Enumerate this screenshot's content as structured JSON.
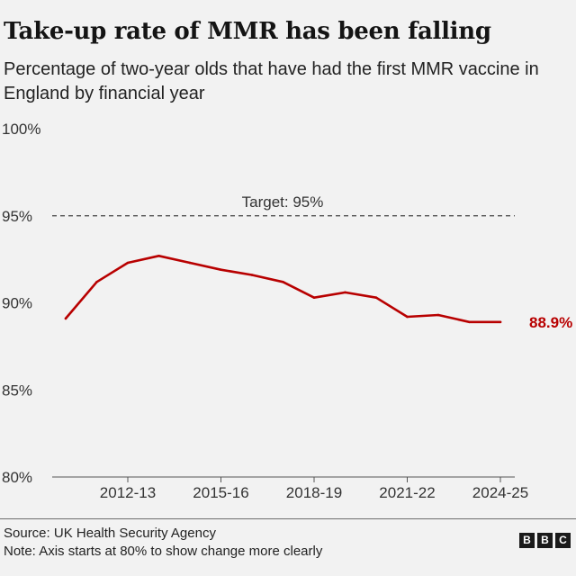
{
  "title": "Take-up rate of MMR has been falling",
  "subtitle": "Percentage of two-year olds that have had the first MMR vaccine in England by financial year",
  "source": "Source: UK Health Security Agency",
  "note": "Note: Axis starts at 80% to show change more clearly",
  "logo": [
    "B",
    "B",
    "C"
  ],
  "colors": {
    "line": "#b80000",
    "background": "#f2f2f2",
    "target": "#444444"
  },
  "chart_data": {
    "type": "line",
    "title": "Take-up rate of MMR has been falling",
    "xlabel": "",
    "ylabel": "",
    "x": [
      "2010-11",
      "2011-12",
      "2012-13",
      "2013-14",
      "2014-15",
      "2015-16",
      "2016-17",
      "2017-18",
      "2018-19",
      "2019-20",
      "2020-21",
      "2021-22",
      "2022-23",
      "2023-24",
      "2024-25"
    ],
    "series": [
      {
        "name": "First MMR vaccine take-up",
        "values": [
          89.1,
          91.2,
          92.3,
          92.7,
          92.3,
          91.9,
          91.6,
          91.2,
          90.3,
          90.6,
          90.3,
          89.2,
          89.3,
          88.9,
          88.9
        ]
      }
    ],
    "ylim": [
      80,
      100
    ],
    "yticks": [
      80,
      85,
      90,
      95,
      100
    ],
    "ytick_labels": [
      "80%",
      "85%",
      "90%",
      "95%",
      "100%"
    ],
    "xtick_labels": [
      "2012-13",
      "2015-16",
      "2018-19",
      "2021-22",
      "2024-25"
    ],
    "target": {
      "value": 95,
      "label": "Target: 95%"
    },
    "end_label": "88.9%",
    "grid": false
  }
}
